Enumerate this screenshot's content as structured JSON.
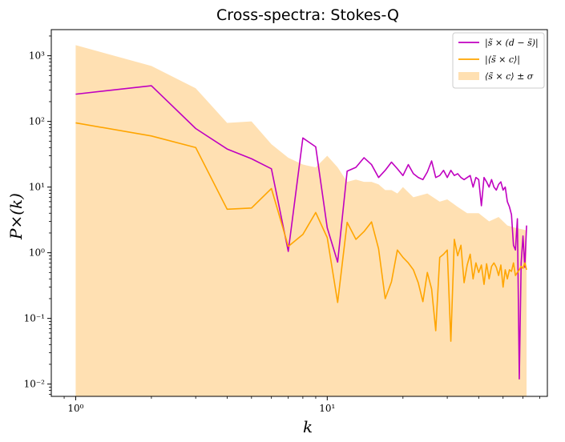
{
  "chart_data": {
    "type": "line",
    "title": "Cross-spectra: Stokes-Q",
    "xlabel": "k",
    "ylabel": "P×(k)",
    "xscale": "log",
    "yscale": "log",
    "xlim": [
      0.8,
      75
    ],
    "ylim": [
      0.0065,
      2500
    ],
    "x_ticks": [
      {
        "value": 1,
        "label": "10⁰"
      },
      {
        "value": 10,
        "label": "10¹"
      }
    ],
    "y_ticks": [
      {
        "value": 0.01,
        "label": "10⁻²"
      },
      {
        "value": 0.1,
        "label": "10⁻¹"
      },
      {
        "value": 1,
        "label": "10⁰"
      },
      {
        "value": 10,
        "label": "10¹"
      },
      {
        "value": 100,
        "label": "10²"
      },
      {
        "value": 1000,
        "label": "10³"
      }
    ],
    "grid": false,
    "legend_position": "top-right",
    "colors": {
      "magenta": "#c000c0",
      "orange": "#ffa500",
      "band": "#ffe0b2"
    },
    "series": [
      {
        "name": "|s̃ × (d − s̃)|",
        "kind": "line",
        "color": "#c000c0",
        "x": [
          1,
          2,
          3,
          4,
          5,
          6,
          7,
          8,
          9,
          10,
          11,
          12,
          13,
          14,
          15,
          16,
          17,
          18,
          19,
          20,
          21,
          22,
          23,
          24,
          25,
          26,
          27,
          28,
          29,
          30,
          31,
          32,
          33,
          34,
          35,
          36,
          37,
          38,
          39,
          40,
          41,
          42,
          43,
          44,
          45,
          46,
          47,
          48,
          49,
          50,
          51,
          52,
          53,
          54,
          55,
          56,
          57,
          58,
          59,
          60,
          61,
          62
        ],
        "y": [
          260,
          350,
          78,
          38,
          27,
          19,
          1.05,
          56,
          41,
          2.4,
          0.72,
          17.5,
          20,
          28,
          22,
          14,
          18,
          24,
          19,
          15,
          22,
          16,
          14,
          13,
          17,
          25,
          14,
          15,
          18,
          14,
          18,
          15,
          16,
          14,
          13,
          14,
          15,
          10,
          14,
          13,
          5.2,
          14,
          12,
          10,
          13,
          10,
          9,
          11,
          12,
          9,
          10,
          6,
          5,
          3.8,
          1.3,
          1.1,
          3.3,
          0.012,
          0.7,
          1.8,
          0.6,
          2.6
        ]
      },
      {
        "name": "|⟨s̃ × c⟩|",
        "kind": "line",
        "color": "#ffa500",
        "x": [
          1,
          2,
          3,
          4,
          5,
          6,
          7,
          8,
          9,
          10,
          11,
          12,
          13,
          14,
          15,
          16,
          17,
          18,
          19,
          20,
          21,
          22,
          23,
          24,
          25,
          26,
          27,
          28,
          29,
          30,
          31,
          32,
          33,
          34,
          35,
          36,
          37,
          38,
          39,
          40,
          41,
          42,
          43,
          44,
          45,
          46,
          47,
          48,
          49,
          50,
          51,
          52,
          53,
          54,
          55,
          56,
          57,
          58,
          59,
          60,
          61,
          62
        ],
        "y": [
          95,
          60,
          40,
          4.6,
          4.8,
          9.5,
          1.25,
          1.9,
          4.1,
          1.7,
          0.175,
          2.9,
          1.6,
          2.1,
          2.95,
          1.15,
          0.2,
          0.36,
          1.1,
          0.85,
          0.7,
          0.55,
          0.35,
          0.18,
          0.5,
          0.28,
          0.065,
          0.85,
          0.95,
          1.1,
          0.045,
          1.6,
          0.9,
          1.3,
          0.35,
          0.65,
          0.95,
          0.4,
          0.7,
          0.5,
          0.65,
          0.33,
          0.68,
          0.4,
          0.62,
          0.7,
          0.6,
          0.45,
          0.65,
          0.3,
          0.55,
          0.4,
          0.55,
          0.52,
          0.7,
          0.45,
          0.5,
          0.55,
          0.62,
          0.58,
          0.7,
          0.55
        ]
      },
      {
        "name": "⟨s̃ × c⟩ ± σ",
        "kind": "band",
        "color": "#ffe0b2",
        "x": [
          1,
          2,
          3,
          4,
          5,
          6,
          7,
          8,
          9,
          10,
          11,
          12,
          13,
          14,
          15,
          16,
          17,
          18,
          19,
          20,
          22,
          25,
          28,
          30,
          33,
          36,
          40,
          44,
          48,
          52,
          56,
          62
        ],
        "upper": [
          1450,
          700,
          320,
          95,
          100,
          45,
          28,
          22,
          20,
          30,
          20,
          12,
          13,
          12,
          12,
          11,
          9,
          9,
          8,
          10,
          7,
          8,
          6,
          6.5,
          5,
          4,
          4,
          3,
          3.5,
          2.6,
          2.4,
          2.2
        ],
        "lower": [
          0.005,
          0.005,
          0.005,
          0.005,
          0.005,
          0.005,
          0.005,
          0.005,
          0.005,
          0.005,
          0.005,
          0.005,
          0.005,
          0.005,
          0.005,
          0.005,
          0.005,
          0.005,
          0.005,
          0.005,
          0.005,
          0.005,
          0.005,
          0.005,
          0.005,
          0.005,
          0.005,
          0.005,
          0.005,
          0.005,
          0.005,
          0.005
        ]
      }
    ]
  }
}
